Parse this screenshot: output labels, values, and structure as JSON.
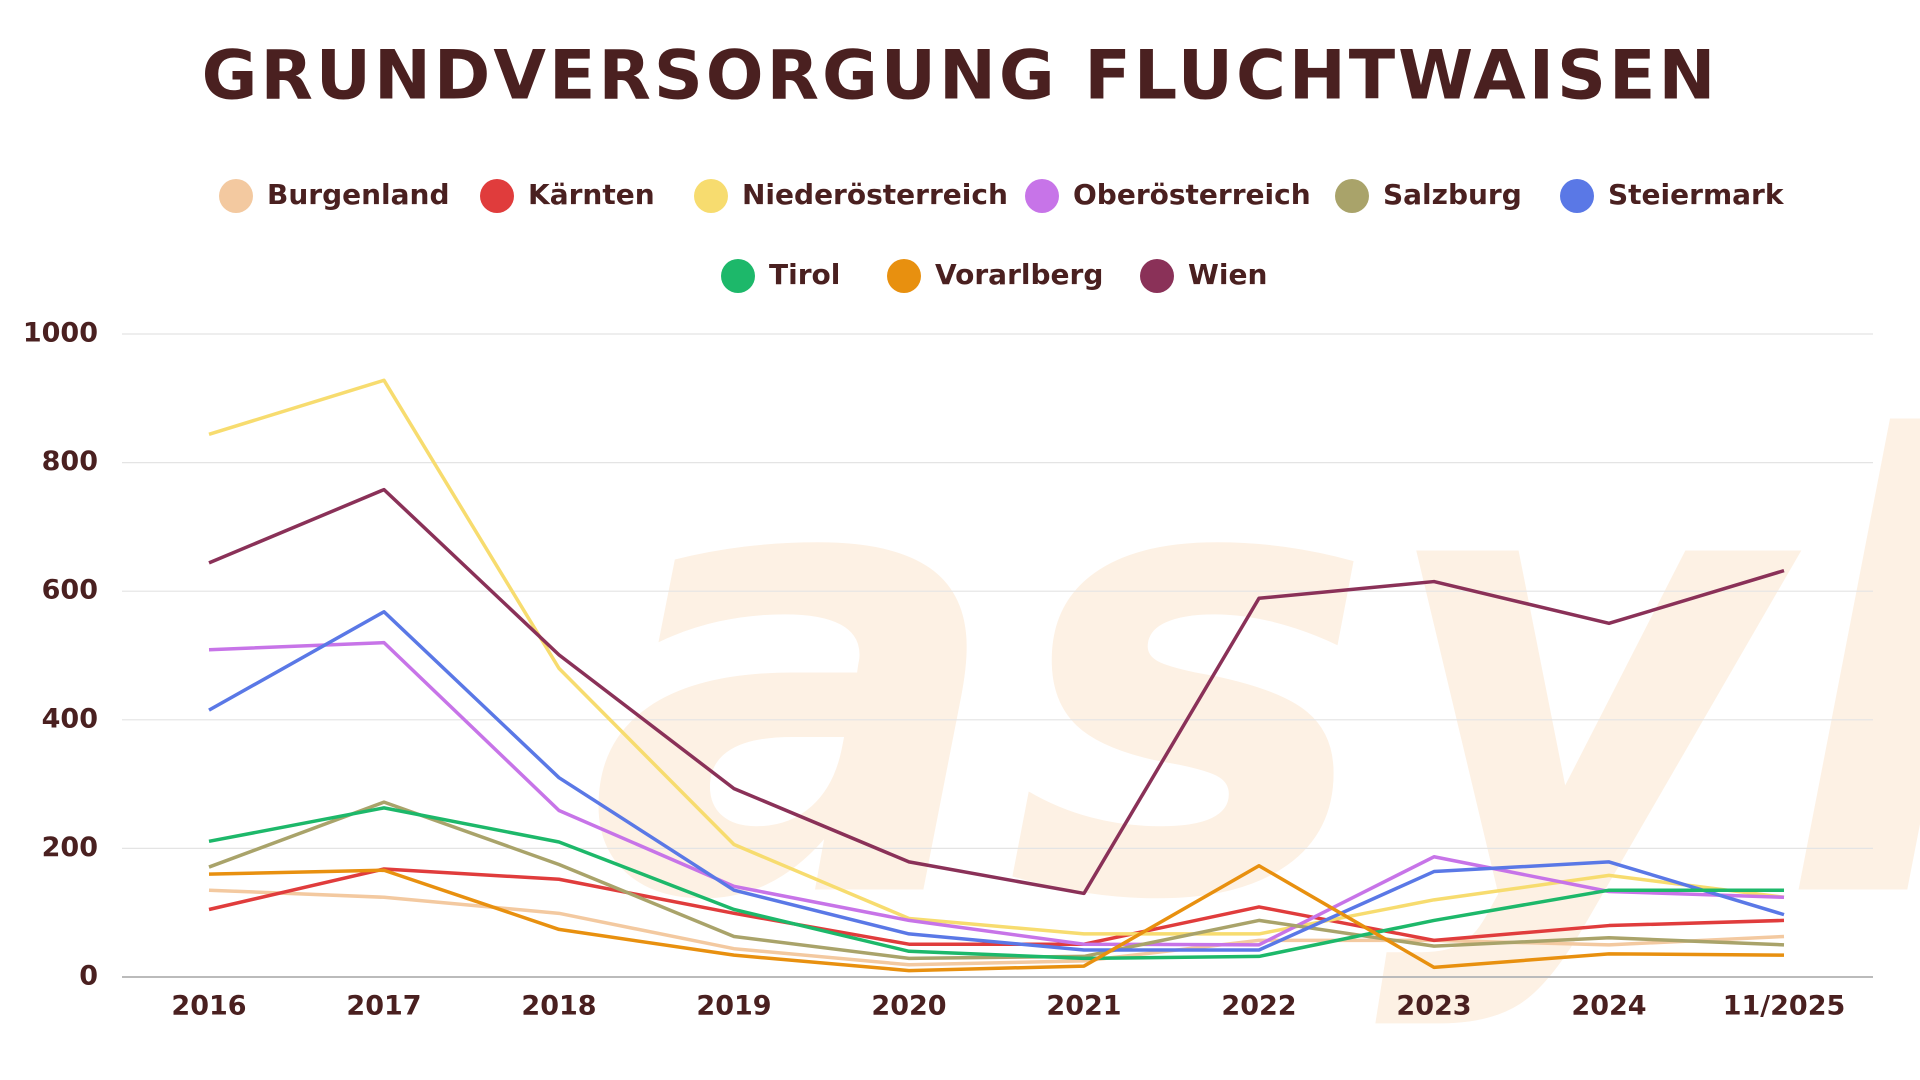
{
  "chart_data": {
    "type": "line",
    "title": "GRUNDVERSORGUNG FLUCHTWAISEN",
    "watermark": "asyl",
    "categories": [
      "2016",
      "2017",
      "2018",
      "2019",
      "2020",
      "2021",
      "2022",
      "2023",
      "2024",
      "11/2025"
    ],
    "ylim": [
      0,
      1000
    ],
    "yticks": [
      0,
      200,
      400,
      600,
      800,
      1000
    ],
    "grid": true,
    "series": [
      {
        "name": "Burgenland",
        "color": "#f3c9a0",
        "values": [
          135,
          124,
          99,
          44,
          19,
          25,
          57,
          57,
          50,
          63
        ]
      },
      {
        "name": "Kärnten",
        "color": "#e03c3c",
        "values": [
          105,
          168,
          152,
          99,
          51,
          51,
          109,
          57,
          80,
          88
        ]
      },
      {
        "name": "Niederösterreich",
        "color": "#f7dc6f",
        "values": [
          844,
          928,
          480,
          206,
          91,
          67,
          67,
          120,
          158,
          124
        ]
      },
      {
        "name": "Oberösterreich",
        "color": "#c774e8",
        "values": [
          509,
          520,
          259,
          141,
          88,
          51,
          50,
          187,
          133,
          124
        ]
      },
      {
        "name": "Salzburg",
        "color": "#a9a36a",
        "values": [
          171,
          272,
          175,
          63,
          29,
          32,
          88,
          48,
          61,
          50
        ]
      },
      {
        "name": "Steiermark",
        "color": "#5a78e6",
        "values": [
          415,
          568,
          310,
          135,
          67,
          42,
          42,
          164,
          179,
          97
        ]
      },
      {
        "name": "Tirol",
        "color": "#1db86a",
        "values": [
          211,
          263,
          210,
          105,
          40,
          29,
          32,
          88,
          135,
          135
        ]
      },
      {
        "name": "Vorarlberg",
        "color": "#e8900f",
        "values": [
          160,
          166,
          74,
          34,
          10,
          17,
          173,
          15,
          36,
          34
        ]
      },
      {
        "name": "Wien",
        "color": "#8a3158",
        "values": [
          644,
          758,
          501,
          293,
          179,
          130,
          589,
          615,
          550,
          632
        ]
      }
    ]
  }
}
